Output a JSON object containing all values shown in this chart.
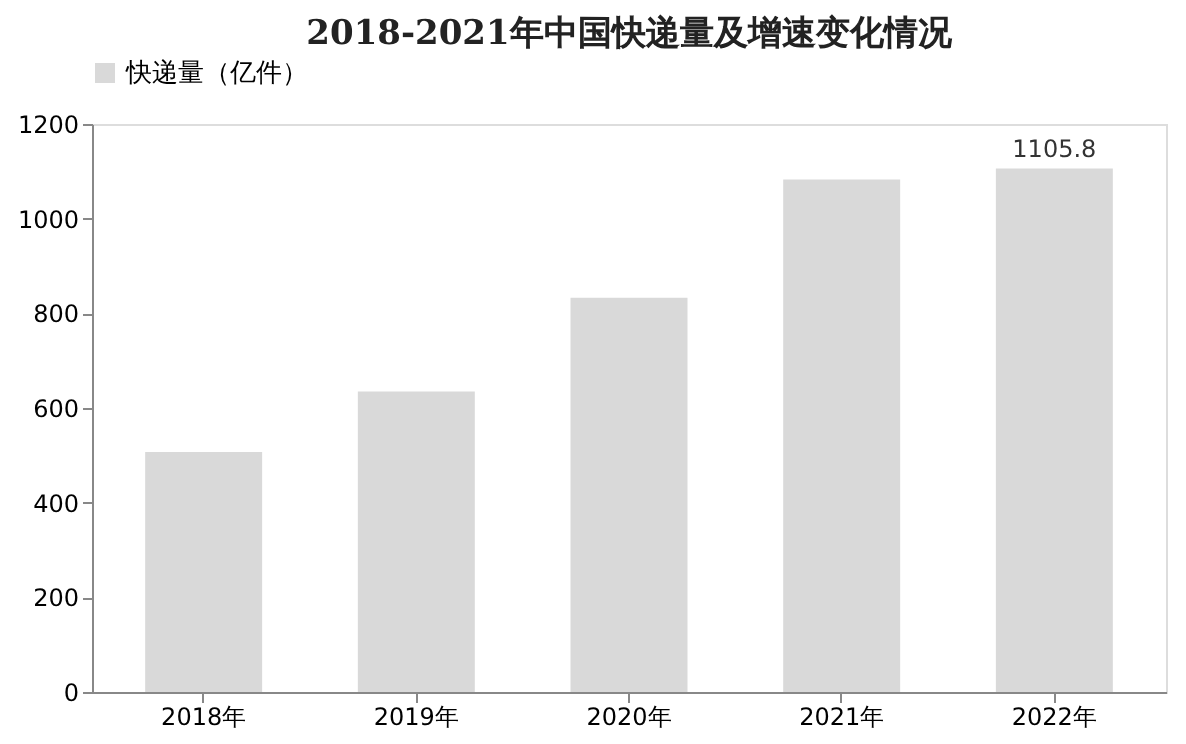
{
  "chart_data": {
    "type": "bar",
    "title": "2018-2021年中国快递量及增速变化情况",
    "categories": [
      "2018年",
      "2019年",
      "2020年",
      "2021年",
      "2022年"
    ],
    "series": [
      {
        "name": "快递量（亿件）",
        "color": "#d9d9d9",
        "values": [
          507,
          635,
          833,
          1083,
          1105.8
        ],
        "value_labels": [
          null,
          null,
          null,
          null,
          "1105.8"
        ]
      }
    ],
    "ylim": [
      0,
      1200
    ],
    "yticks": [
      0,
      200,
      400,
      600,
      800,
      1000,
      1200
    ],
    "grid": false,
    "legend": "top"
  }
}
